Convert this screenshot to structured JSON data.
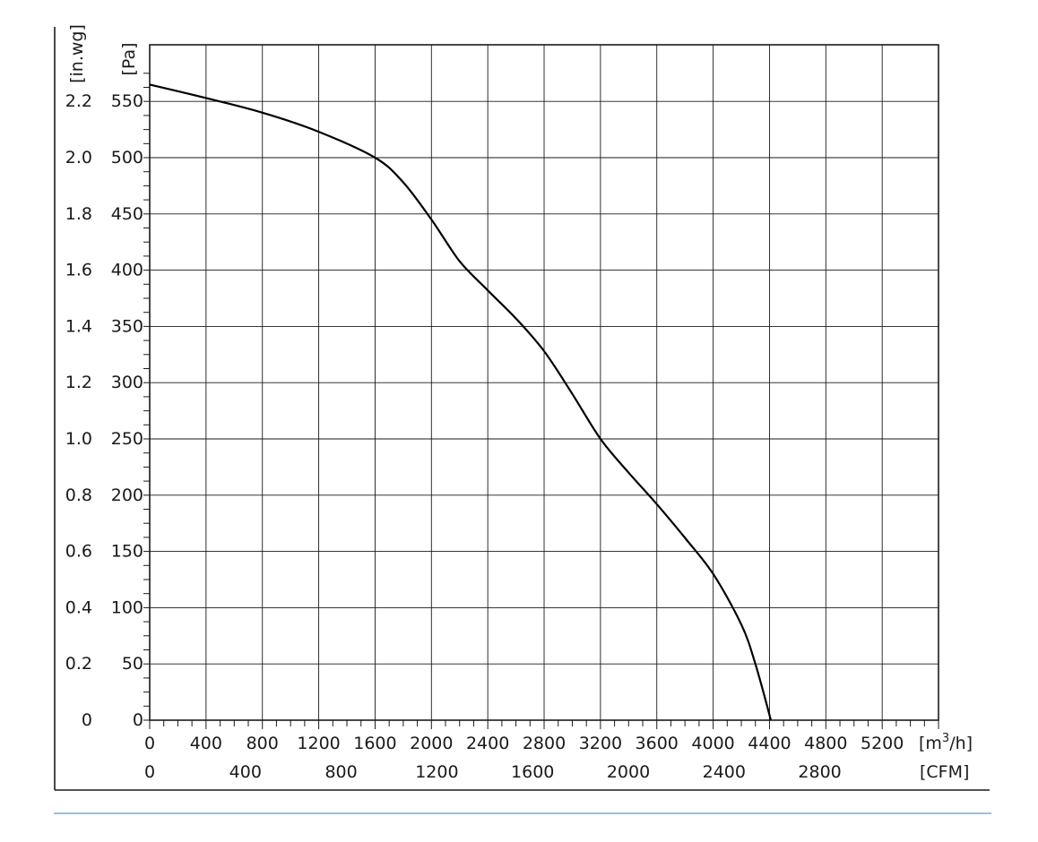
{
  "chart_data": {
    "type": "line",
    "title": "",
    "xlabel": "",
    "ylabel": "",
    "x_unit_primary": "[m3/h]",
    "x_unit_secondary": "[CFM]",
    "y_unit_primary": "[Pa]",
    "y_unit_secondary": "[in.wg]",
    "xlim": [
      0,
      5600
    ],
    "ylim": [
      0,
      550
    ],
    "grid": true,
    "x_ticks_primary": [
      "0",
      "400",
      "800",
      "1200",
      "1600",
      "2000",
      "2400",
      "2800",
      "3200",
      "3600",
      "4000",
      "4400",
      "4800",
      "5200"
    ],
    "x_ticks_secondary": [
      "0",
      "400",
      "800",
      "1200",
      "1600",
      "2000",
      "2400",
      "2800"
    ],
    "y_ticks_primary": [
      "0",
      "50",
      "100",
      "150",
      "200",
      "250",
      "300",
      "350",
      "400",
      "450",
      "500",
      "550"
    ],
    "y_ticks_secondary": [
      "0",
      "0.2",
      "0.4",
      "0.6",
      "0.8",
      "1.0",
      "1.2",
      "1.4",
      "1.6",
      "1.8",
      "2.0",
      "2.2"
    ],
    "series": [
      {
        "x": [
          0,
          400,
          800,
          1200,
          1600,
          1800,
          2000,
          2200,
          2400,
          2600,
          2800,
          3000,
          3200,
          3400,
          3600,
          3800,
          4000,
          4200,
          4300,
          4410
        ],
        "y": [
          565,
          553,
          540,
          523,
          500,
          478,
          445,
          408,
          382,
          357,
          328,
          290,
          250,
          220,
          192,
          162,
          130,
          85,
          50,
          0
        ]
      }
    ]
  },
  "colors": {
    "line": "#000000",
    "grid": "#1a1a1a",
    "accent_rule": "#5b9bd5"
  }
}
